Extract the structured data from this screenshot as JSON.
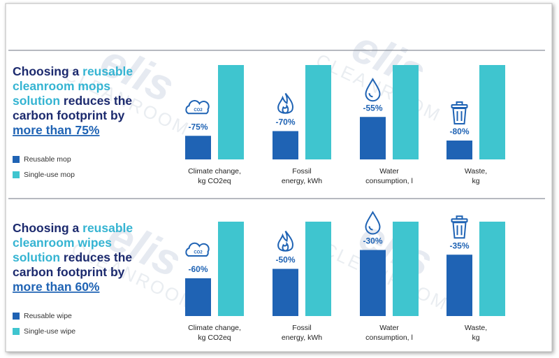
{
  "watermark": {
    "brand": "elis",
    "sub": "CLEANROOM"
  },
  "cloud_icon_label": "CO2",
  "chart_data": [
    {
      "type": "bar",
      "headline": [
        [
          {
            "text": "Choosing a ",
            "style": "plain"
          },
          {
            "text": "reusable",
            "style": "accent"
          }
        ],
        [
          {
            "text": "cleanroom mops",
            "style": "accent"
          }
        ],
        [
          {
            "text": "solution",
            "style": "accent"
          },
          {
            "text": " reduces the",
            "style": "plain"
          }
        ],
        [
          {
            "text": "carbon footprint by",
            "style": "plain"
          }
        ],
        [
          {
            "text": "more than 75%",
            "style": "link"
          }
        ]
      ],
      "categories": [
        [
          "Climate change,",
          "kg CO2eq"
        ],
        [
          "Fossil",
          "energy, kWh"
        ],
        [
          "Water",
          "consumption, l"
        ],
        [
          "Waste,",
          "kg"
        ]
      ],
      "series": [
        {
          "name": "Reusable mop",
          "color": "#1f63b4",
          "values": [
            25,
            30,
            45,
            20
          ]
        },
        {
          "name": "Single-use mop",
          "color": "#3fc5cf",
          "values": [
            100,
            100,
            100,
            100
          ]
        }
      ],
      "annotations": [
        "-75%",
        "-70%",
        "-55%",
        "-80%"
      ],
      "ylim": [
        0,
        100
      ],
      "legend": "bottom-left"
    },
    {
      "type": "bar",
      "headline": [
        [
          {
            "text": "Choosing a ",
            "style": "plain"
          },
          {
            "text": "reusable",
            "style": "accent"
          }
        ],
        [
          {
            "text": "cleanroom wipes",
            "style": "accent"
          }
        ],
        [
          {
            "text": "solution",
            "style": "accent"
          },
          {
            "text": " reduces the",
            "style": "plain"
          }
        ],
        [
          {
            "text": "carbon footprint by",
            "style": "plain"
          }
        ],
        [
          {
            "text": "more than 60%",
            "style": "link"
          }
        ]
      ],
      "categories": [
        [
          "Climate change,",
          "kg CO2eq"
        ],
        [
          "Fossil",
          "energy, kWh"
        ],
        [
          "Water",
          "consumption, l"
        ],
        [
          "Waste,",
          "kg"
        ]
      ],
      "series": [
        {
          "name": "Reusable wipe",
          "color": "#1f63b4",
          "values": [
            40,
            50,
            70,
            65
          ]
        },
        {
          "name": "Single-use wipe",
          "color": "#3fc5cf",
          "values": [
            100,
            100,
            100,
            100
          ]
        }
      ],
      "annotations": [
        "-60%",
        "-50%",
        "-30%",
        "-35%"
      ],
      "ylim": [
        0,
        100
      ],
      "legend": "bottom-left"
    }
  ]
}
